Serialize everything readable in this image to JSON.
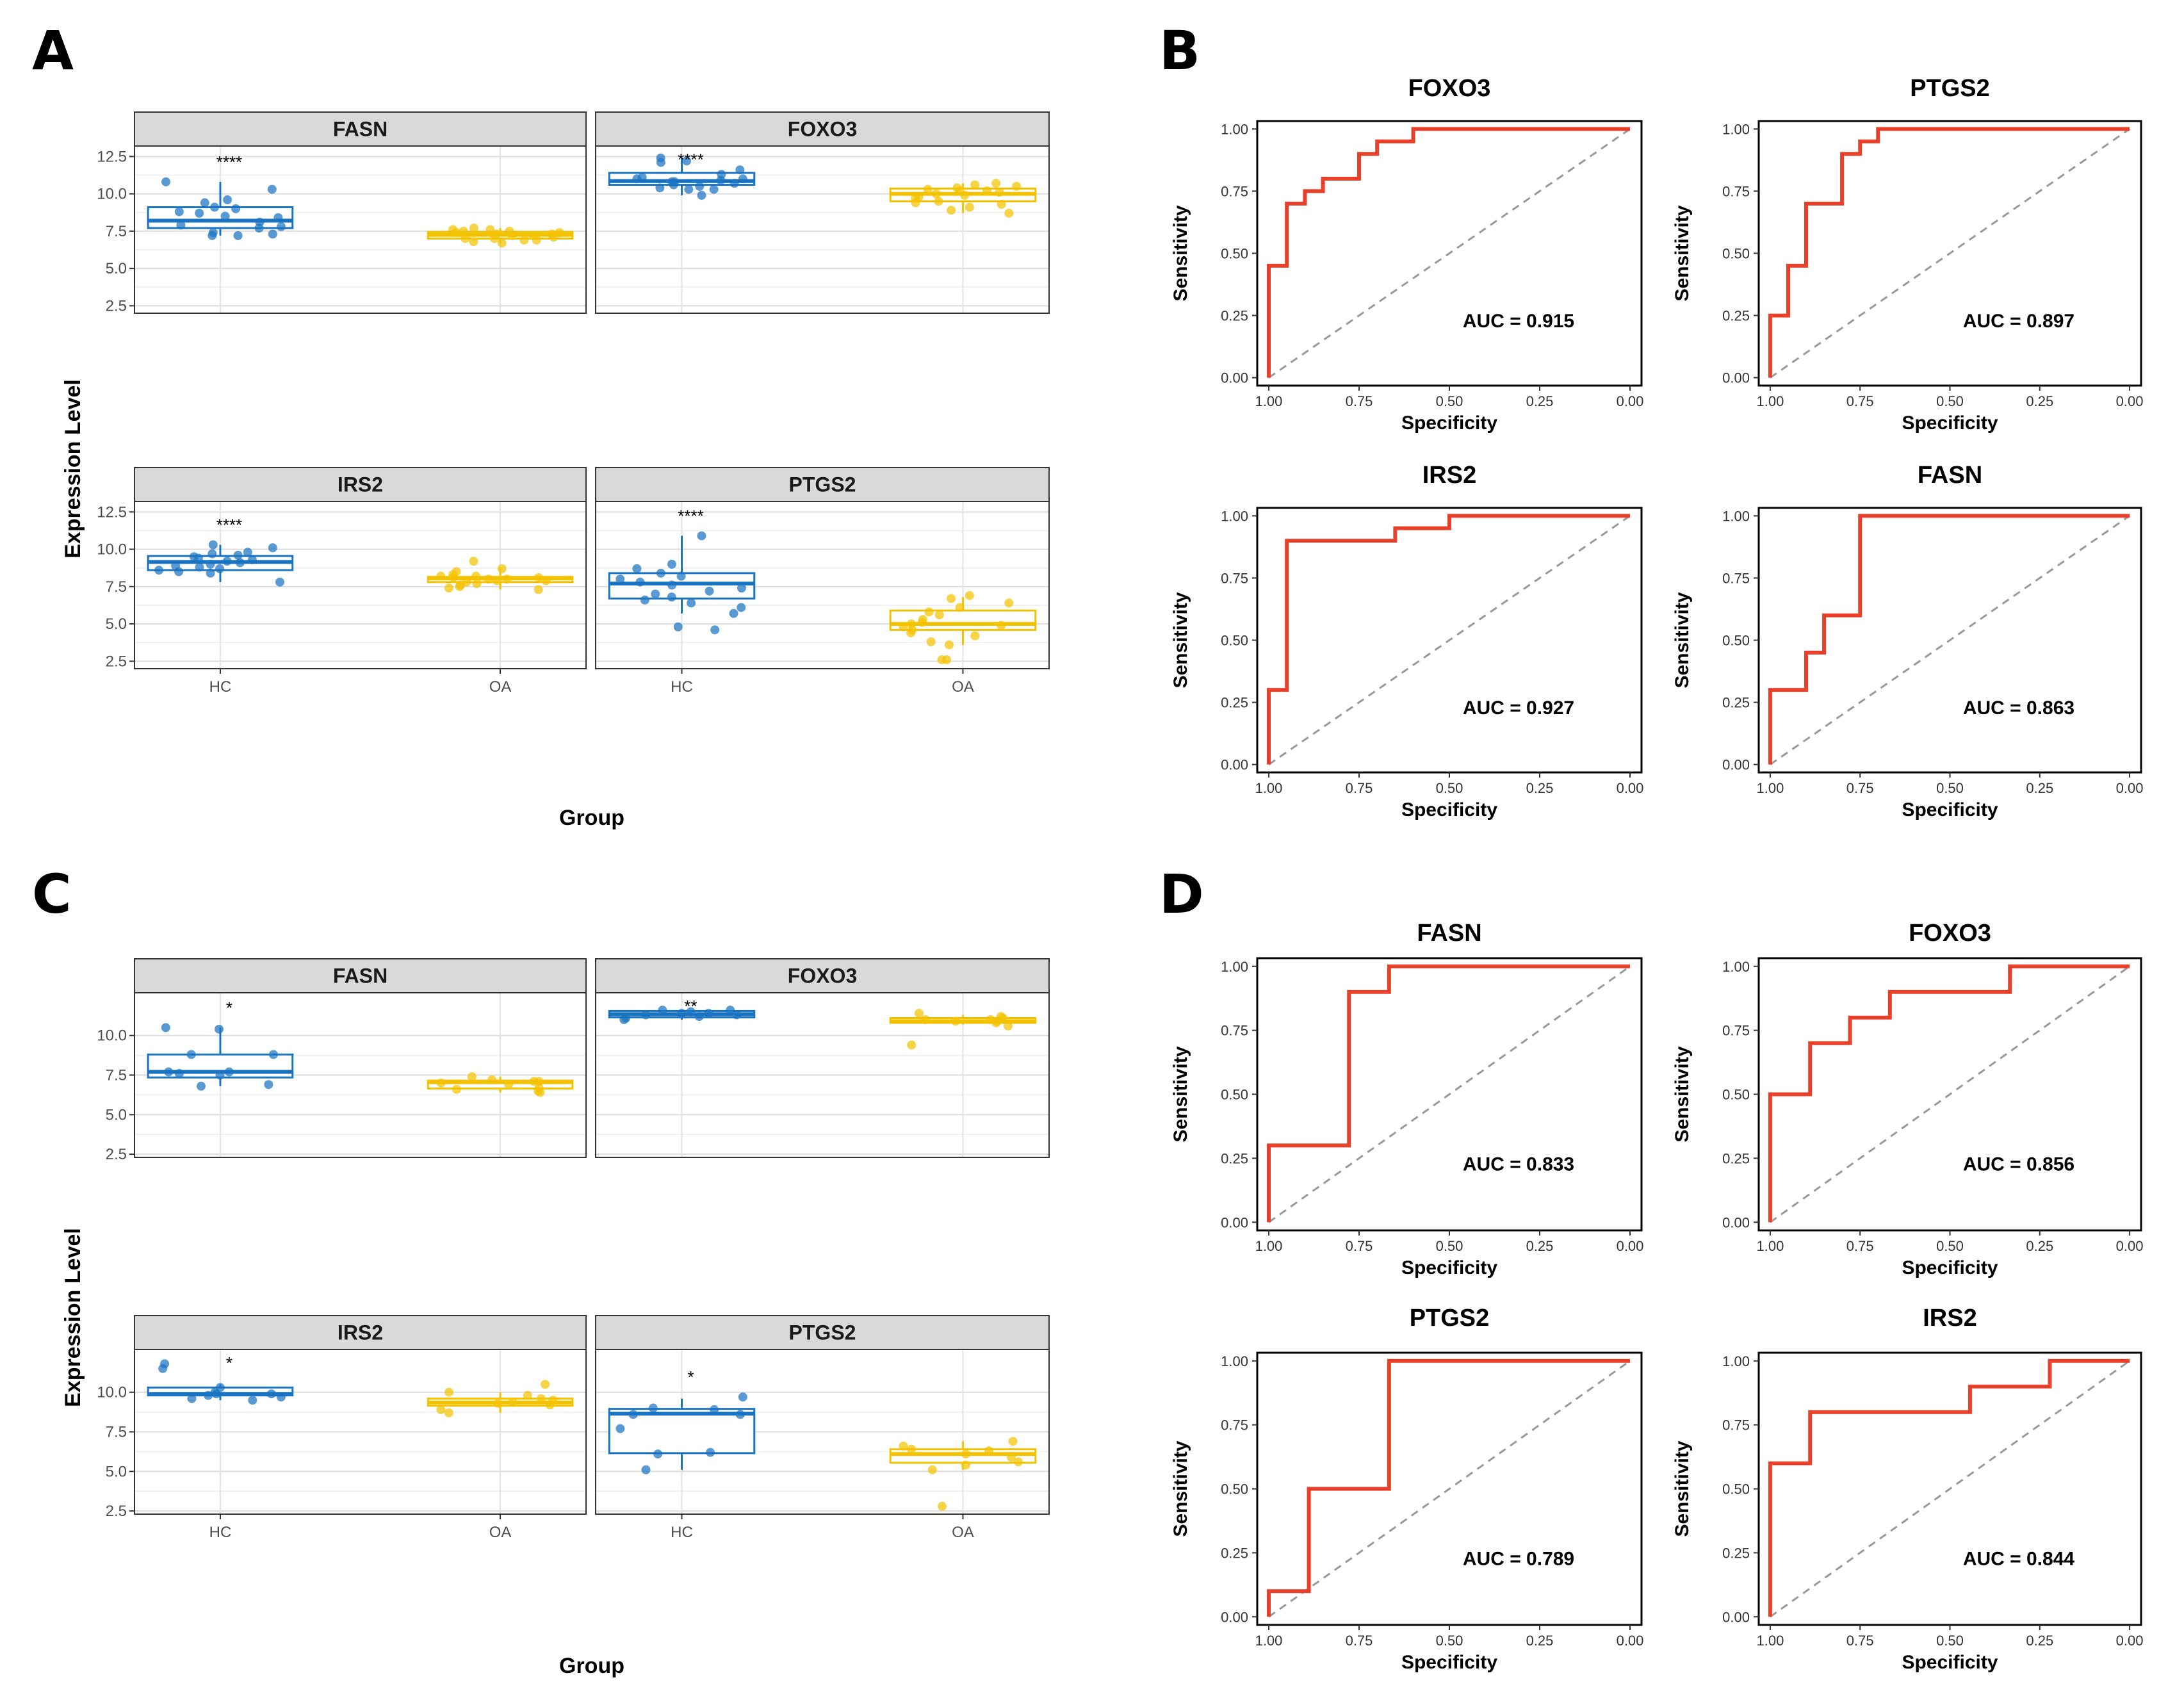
{
  "chart_data": [
    {
      "panel": "A",
      "type": "box",
      "ylabel": "Expression Level",
      "xlabel": "Group",
      "categories": [
        "HC",
        "OA"
      ],
      "ylim": [
        2.0,
        13.2
      ],
      "yticks": [
        2.5,
        5.0,
        7.5,
        10.0,
        12.5
      ],
      "ytick_labels": [
        "2.5",
        "5.0",
        "7.5",
        "10.0",
        "12.5"
      ],
      "colors": {
        "HC": "#1a73c0",
        "OA": "#f2c200"
      },
      "facets": [
        {
          "gene": "FASN",
          "significance": "****",
          "groups": [
            {
              "name": "HC",
              "q1": 7.7,
              "median": 8.2,
              "q3": 9.1,
              "whisker_low": 7.2,
              "whisker_high": 10.8,
              "points": [
                10.3,
                10.8,
                9.6,
                9.4,
                9.1,
                9.0,
                8.8,
                8.7,
                8.5,
                8.4,
                8.1,
                7.9,
                7.8,
                7.7,
                7.4,
                7.3,
                7.2,
                7.2
              ]
            },
            {
              "name": "OA",
              "q1": 7.0,
              "median": 7.25,
              "q3": 7.45,
              "whisker_low": 6.7,
              "whisker_high": 7.7,
              "points": [
                7.7,
                7.6,
                7.5,
                7.5,
                7.4,
                7.3,
                7.3,
                7.2,
                7.2,
                7.1,
                7.0,
                7.0,
                6.9,
                6.9,
                6.8,
                6.7,
                7.4,
                7.6
              ]
            }
          ]
        },
        {
          "gene": "FOXO3",
          "significance": "****",
          "groups": [
            {
              "name": "HC",
              "q1": 10.6,
              "median": 10.85,
              "q3": 11.4,
              "whisker_low": 9.9,
              "whisker_high": 12.4,
              "points": [
                12.4,
                12.2,
                11.6,
                11.3,
                11.1,
                11.0,
                10.9,
                10.8,
                10.7,
                10.6,
                10.5,
                10.4,
                10.3,
                10.3,
                9.9,
                10.8,
                11.0,
                12.1
              ]
            },
            {
              "name": "OA",
              "q1": 9.5,
              "median": 10.0,
              "q3": 10.35,
              "whisker_low": 8.7,
              "whisker_high": 10.7,
              "points": [
                10.7,
                10.6,
                10.5,
                10.4,
                10.3,
                10.2,
                10.1,
                10.0,
                9.9,
                9.8,
                9.7,
                9.5,
                9.4,
                9.3,
                9.1,
                8.9,
                8.7,
                10.2
              ]
            }
          ]
        },
        {
          "gene": "IRS2",
          "significance": "****",
          "groups": [
            {
              "name": "HC",
              "q1": 8.6,
              "median": 9.15,
              "q3": 9.55,
              "whisker_low": 7.8,
              "whisker_high": 10.3,
              "points": [
                10.3,
                10.1,
                9.7,
                9.6,
                9.4,
                9.3,
                9.2,
                9.1,
                9.0,
                8.9,
                8.8,
                8.7,
                8.6,
                8.5,
                8.4,
                7.8,
                9.8,
                9.5
              ]
            },
            {
              "name": "OA",
              "q1": 7.8,
              "median": 8.05,
              "q3": 8.15,
              "whisker_low": 7.3,
              "whisker_high": 8.8,
              "points": [
                9.2,
                8.7,
                8.5,
                8.3,
                8.2,
                8.1,
                8.1,
                8.0,
                8.0,
                7.9,
                7.9,
                7.8,
                7.7,
                7.6,
                7.5,
                7.4,
                7.3,
                8.2
              ]
            }
          ]
        },
        {
          "gene": "PTGS2",
          "significance": "****",
          "groups": [
            {
              "name": "HC",
              "q1": 6.7,
              "median": 7.7,
              "q3": 8.4,
              "whisker_low": 5.7,
              "whisker_high": 10.9,
              "points": [
                10.9,
                9.0,
                8.7,
                8.4,
                8.2,
                8.0,
                7.8,
                7.6,
                7.4,
                7.2,
                7.0,
                6.8,
                6.6,
                6.4,
                6.1,
                5.7,
                4.8,
                4.6
              ]
            },
            {
              "name": "OA",
              "q1": 4.6,
              "median": 5.0,
              "q3": 5.9,
              "whisker_low": 3.6,
              "whisker_high": 6.8,
              "points": [
                6.9,
                6.7,
                6.4,
                6.1,
                5.8,
                5.6,
                5.3,
                5.1,
                5.0,
                4.9,
                4.8,
                4.6,
                4.4,
                4.2,
                3.8,
                3.6,
                2.6,
                2.6
              ]
            }
          ]
        }
      ]
    },
    {
      "panel": "C",
      "type": "box",
      "ylabel": "Expression Level",
      "xlabel": "Group",
      "categories": [
        "HC",
        "OA"
      ],
      "ylim": [
        2.3,
        12.7
      ],
      "yticks": [
        2.5,
        5.0,
        7.5,
        10.0
      ],
      "ytick_labels": [
        "2.5",
        "5.0",
        "7.5",
        "10.0"
      ],
      "colors": {
        "HC": "#1a73c0",
        "OA": "#f2c200"
      },
      "facets": [
        {
          "gene": "FASN",
          "significance": "*",
          "groups": [
            {
              "name": "HC",
              "q1": 7.35,
              "median": 7.7,
              "q3": 8.8,
              "whisker_low": 6.8,
              "whisker_high": 10.5,
              "points": [
                10.5,
                10.4,
                8.8,
                8.8,
                7.7,
                7.6,
                7.5,
                6.9,
                6.8,
                7.7
              ]
            },
            {
              "name": "OA",
              "q1": 6.65,
              "median": 7.05,
              "q3": 7.15,
              "whisker_low": 6.4,
              "whisker_high": 7.4,
              "points": [
                7.4,
                7.2,
                7.1,
                7.1,
                7.0,
                6.9,
                6.7,
                6.6,
                6.5,
                6.4
              ]
            }
          ]
        },
        {
          "gene": "FOXO3",
          "significance": "**",
          "groups": [
            {
              "name": "HC",
              "q1": 11.15,
              "median": 11.35,
              "q3": 11.55,
              "whisker_low": 11.0,
              "whisker_high": 11.6,
              "points": [
                11.6,
                11.6,
                11.5,
                11.4,
                11.3,
                11.3,
                11.2,
                11.1,
                11.0,
                11.4
              ]
            },
            {
              "name": "OA",
              "q1": 10.8,
              "median": 10.9,
              "q3": 11.1,
              "whisker_low": 10.7,
              "whisker_high": 11.3,
              "points": [
                11.4,
                11.2,
                11.1,
                11.0,
                10.9,
                10.9,
                10.8,
                10.6,
                9.4,
                11.0
              ]
            }
          ]
        },
        {
          "gene": "IRS2",
          "significance": "*",
          "groups": [
            {
              "name": "HC",
              "q1": 9.8,
              "median": 9.9,
              "q3": 10.3,
              "whisker_low": 9.5,
              "whisker_high": 10.5,
              "points": [
                11.8,
                11.5,
                10.3,
                10.0,
                9.9,
                9.9,
                9.8,
                9.7,
                9.6,
                9.5
              ]
            },
            {
              "name": "OA",
              "q1": 9.15,
              "median": 9.35,
              "q3": 9.6,
              "whisker_low": 8.7,
              "whisker_high": 10.0,
              "points": [
                10.5,
                10.0,
                9.8,
                9.6,
                9.5,
                9.4,
                9.3,
                9.2,
                8.9,
                8.7
              ]
            }
          ]
        },
        {
          "gene": "PTGS2",
          "significance": "*",
          "groups": [
            {
              "name": "HC",
              "q1": 6.15,
              "median": 8.65,
              "q3": 8.95,
              "whisker_low": 5.1,
              "whisker_high": 9.6,
              "points": [
                9.7,
                9.0,
                8.9,
                8.6,
                8.6,
                7.7,
                6.2,
                6.1,
                5.1
              ]
            },
            {
              "name": "OA",
              "q1": 5.55,
              "median": 6.1,
              "q3": 6.4,
              "whisker_low": 5.1,
              "whisker_high": 6.9,
              "points": [
                6.9,
                6.6,
                6.4,
                6.3,
                6.1,
                5.9,
                5.6,
                5.4,
                5.1,
                2.8
              ]
            }
          ]
        }
      ]
    },
    {
      "panel": "B",
      "type": "roc",
      "xlabel": "Specificity",
      "ylabel": "Sensitivity",
      "ticks": [
        1.0,
        0.75,
        0.5,
        0.25,
        0.0
      ],
      "tick_labels": [
        "1.00",
        "0.75",
        "0.50",
        "0.25",
        "0.00"
      ],
      "line_color": "#e8412b",
      "plots": [
        {
          "title": "FOXO3",
          "auc_label": "AUC = 0.915",
          "points": [
            [
              1.0,
              0.0
            ],
            [
              1.0,
              0.45
            ],
            [
              0.95,
              0.45
            ],
            [
              0.95,
              0.7
            ],
            [
              0.9,
              0.7
            ],
            [
              0.9,
              0.75
            ],
            [
              0.85,
              0.75
            ],
            [
              0.85,
              0.8
            ],
            [
              0.75,
              0.8
            ],
            [
              0.75,
              0.9
            ],
            [
              0.7,
              0.9
            ],
            [
              0.7,
              0.95
            ],
            [
              0.6,
              0.95
            ],
            [
              0.6,
              1.0
            ],
            [
              0.0,
              1.0
            ]
          ]
        },
        {
          "title": "PTGS2",
          "auc_label": "AUC = 0.897",
          "points": [
            [
              1.0,
              0.0
            ],
            [
              1.0,
              0.25
            ],
            [
              0.95,
              0.25
            ],
            [
              0.95,
              0.45
            ],
            [
              0.9,
              0.45
            ],
            [
              0.9,
              0.7
            ],
            [
              0.8,
              0.7
            ],
            [
              0.8,
              0.9
            ],
            [
              0.75,
              0.9
            ],
            [
              0.75,
              0.95
            ],
            [
              0.7,
              0.95
            ],
            [
              0.7,
              1.0
            ],
            [
              0.0,
              1.0
            ]
          ]
        },
        {
          "title": "IRS2",
          "auc_label": "AUC = 0.927",
          "points": [
            [
              1.0,
              0.0
            ],
            [
              1.0,
              0.3
            ],
            [
              0.95,
              0.3
            ],
            [
              0.95,
              0.9
            ],
            [
              0.65,
              0.9
            ],
            [
              0.65,
              0.95
            ],
            [
              0.5,
              0.95
            ],
            [
              0.5,
              1.0
            ],
            [
              0.0,
              1.0
            ]
          ]
        },
        {
          "title": "FASN",
          "auc_label": "AUC = 0.863",
          "points": [
            [
              1.0,
              0.0
            ],
            [
              1.0,
              0.3
            ],
            [
              0.9,
              0.3
            ],
            [
              0.9,
              0.45
            ],
            [
              0.85,
              0.45
            ],
            [
              0.85,
              0.6
            ],
            [
              0.75,
              0.6
            ],
            [
              0.75,
              1.0
            ],
            [
              0.0,
              1.0
            ]
          ]
        }
      ]
    },
    {
      "panel": "D",
      "type": "roc",
      "xlabel": "Specificity",
      "ylabel": "Sensitivity",
      "ticks": [
        1.0,
        0.75,
        0.5,
        0.25,
        0.0
      ],
      "tick_labels": [
        "1.00",
        "0.75",
        "0.50",
        "0.25",
        "0.00"
      ],
      "line_color": "#e8412b",
      "plots": [
        {
          "title": "FASN",
          "auc_label": "AUC = 0.833",
          "points": [
            [
              1.0,
              0.0
            ],
            [
              1.0,
              0.3
            ],
            [
              0.778,
              0.3
            ],
            [
              0.778,
              0.9
            ],
            [
              0.667,
              0.9
            ],
            [
              0.667,
              1.0
            ],
            [
              0.0,
              1.0
            ]
          ]
        },
        {
          "title": "FOXO3",
          "auc_label": "AUC = 0.856",
          "points": [
            [
              1.0,
              0.0
            ],
            [
              1.0,
              0.5
            ],
            [
              0.889,
              0.5
            ],
            [
              0.889,
              0.7
            ],
            [
              0.778,
              0.7
            ],
            [
              0.778,
              0.8
            ],
            [
              0.667,
              0.8
            ],
            [
              0.667,
              0.9
            ],
            [
              0.333,
              0.9
            ],
            [
              0.333,
              1.0
            ],
            [
              0.0,
              1.0
            ]
          ]
        },
        {
          "title": "PTGS2",
          "auc_label": "AUC = 0.789",
          "points": [
            [
              1.0,
              0.0
            ],
            [
              1.0,
              0.1
            ],
            [
              0.889,
              0.1
            ],
            [
              0.889,
              0.5
            ],
            [
              0.667,
              0.5
            ],
            [
              0.667,
              1.0
            ],
            [
              0.0,
              1.0
            ]
          ]
        },
        {
          "title": "IRS2",
          "auc_label": "AUC = 0.844",
          "points": [
            [
              1.0,
              0.0
            ],
            [
              1.0,
              0.6
            ],
            [
              0.889,
              0.6
            ],
            [
              0.889,
              0.8
            ],
            [
              0.444,
              0.8
            ],
            [
              0.444,
              0.9
            ],
            [
              0.222,
              0.9
            ],
            [
              0.222,
              1.0
            ],
            [
              0.0,
              1.0
            ]
          ]
        }
      ]
    }
  ]
}
